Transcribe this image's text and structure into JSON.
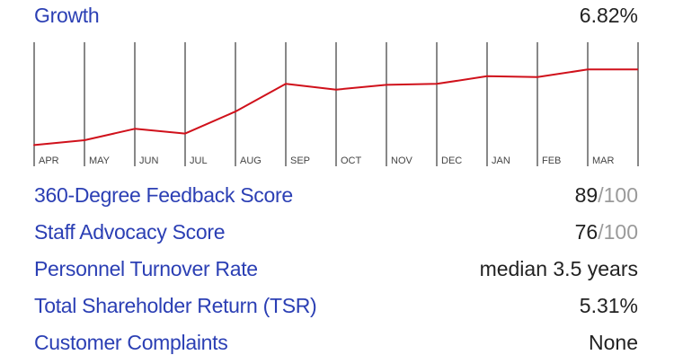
{
  "header": {
    "label": "Growth",
    "value": "6.82%"
  },
  "chart_data": {
    "type": "line",
    "categories": [
      "APR",
      "MAY",
      "JUN",
      "JUL",
      "AUG",
      "SEP",
      "OCT",
      "NOV",
      "DEC",
      "JAN",
      "FEB",
      "MAR"
    ],
    "values": [
      10,
      15,
      27,
      22,
      45,
      74,
      68,
      73,
      74,
      82,
      81,
      89
    ],
    "ylim": [
      0,
      110
    ],
    "line_color": "#d0111b",
    "grid": "vertical"
  },
  "metrics": [
    {
      "label": "360-Degree Feedback Score",
      "value": "89",
      "suffix": "/100"
    },
    {
      "label": "Staff Advocacy Score",
      "value": "76",
      "suffix": "/100"
    },
    {
      "label": "Personnel Turnover Rate",
      "value": "median 3.5 years",
      "suffix": ""
    },
    {
      "label": "Total Shareholder Return (TSR)",
      "value": "5.31%",
      "suffix": ""
    },
    {
      "label": "Customer Complaints",
      "value": "None",
      "suffix": ""
    }
  ]
}
